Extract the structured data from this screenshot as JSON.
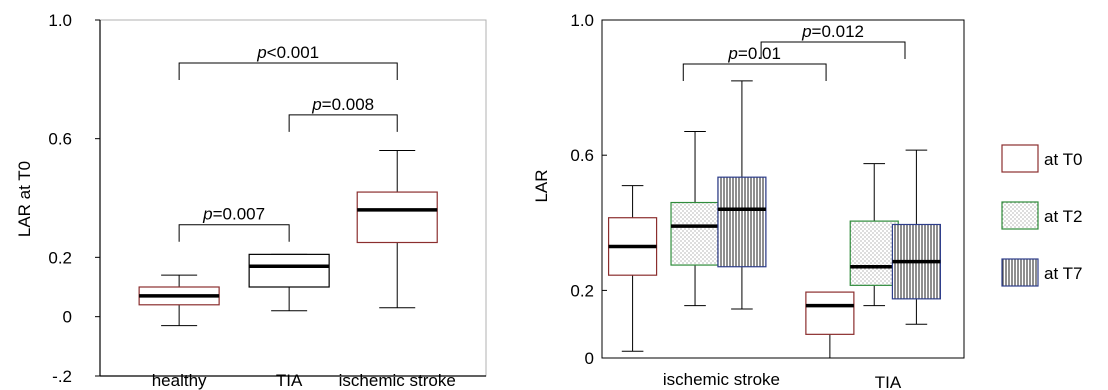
{
  "chart_data": [
    {
      "type": "box",
      "ylabel": "LAR at T0",
      "y_ticks": [
        "1.0",
        "0.6",
        "0.2",
        "0",
        "-.2"
      ],
      "y_tick_values": [
        1.0,
        0.6,
        0.2,
        0.0,
        -0.2
      ],
      "ylim": [
        -0.2,
        1.0
      ],
      "categories": [
        "healthy",
        "TIA",
        "ischemic stroke"
      ],
      "boxes": [
        {
          "category": "healthy",
          "min": -0.03,
          "q1": 0.04,
          "median": 0.07,
          "q3": 0.1,
          "max": 0.14,
          "border": "#8b2e2e"
        },
        {
          "category": "TIA",
          "min": 0.02,
          "q1": 0.1,
          "median": 0.17,
          "q3": 0.21,
          "max": 0.21,
          "border": "#000000"
        },
        {
          "category": "ischemic stroke",
          "min": 0.03,
          "q1": 0.25,
          "median": 0.36,
          "q3": 0.42,
          "max": 0.56,
          "border": "#8b2e2e"
        }
      ],
      "comparisons": [
        {
          "from": "healthy",
          "to": "ischemic stroke",
          "at": 0.855,
          "label_p": "p",
          "label_rest": "<0.001"
        },
        {
          "from": "TIA",
          "to": "ischemic stroke",
          "at": 0.68,
          "label_p": "p",
          "label_rest": "=0.008"
        },
        {
          "from": "healthy",
          "to": "TIA",
          "at": 0.31,
          "label_p": "p",
          "label_rest": "=0.007"
        }
      ]
    },
    {
      "type": "box",
      "ylabel": "LAR",
      "y_ticks": [
        "1.0",
        "0.6",
        "0.2",
        "0"
      ],
      "y_tick_values": [
        1.0,
        0.6,
        0.2,
        0.0
      ],
      "ylim": [
        0,
        1.0
      ],
      "categories": [
        "ischemic stroke",
        "TIA"
      ],
      "series": [
        "at T0",
        "at T2",
        "at T7"
      ],
      "boxes": [
        {
          "category": "ischemic stroke",
          "series": "at T0",
          "min": 0.02,
          "q1": 0.245,
          "median": 0.33,
          "q3": 0.415,
          "max": 0.51,
          "border": "#8b2e2e"
        },
        {
          "category": "ischemic stroke",
          "series": "at T2",
          "min": 0.155,
          "q1": 0.275,
          "median": 0.39,
          "q3": 0.46,
          "max": 0.67,
          "border": "#2e8b3a"
        },
        {
          "category": "ischemic stroke",
          "series": "at T7",
          "min": 0.145,
          "q1": 0.27,
          "median": 0.44,
          "q3": 0.535,
          "max": 0.82,
          "border": "#2e3e8b"
        },
        {
          "category": "TIA",
          "series": "at T0",
          "min": 0.0,
          "q1": 0.07,
          "median": 0.155,
          "q3": 0.195,
          "max": 0.195,
          "border": "#8b2e2e"
        },
        {
          "category": "TIA",
          "series": "at T2",
          "min": 0.155,
          "q1": 0.215,
          "median": 0.27,
          "q3": 0.405,
          "max": 0.575,
          "border": "#2e8b3a"
        },
        {
          "category": "TIA",
          "series": "at T7",
          "min": 0.1,
          "q1": 0.175,
          "median": 0.285,
          "q3": 0.395,
          "max": 0.615,
          "border": "#2e3e8b"
        }
      ],
      "comparisons": [
        {
          "from_x": 0.2245,
          "to_x": 0.619,
          "at": 0.87,
          "label_p": "p",
          "label_rest": "=0.01"
        },
        {
          "from_x": 0.4395,
          "to_x": 0.837,
          "at": 0.935,
          "label_p": "p",
          "label_rest": "=0.012"
        }
      ]
    }
  ],
  "legend": {
    "placement": "right",
    "items": [
      {
        "label": "at T0",
        "fill": "white"
      },
      {
        "label": "at T2",
        "fill": "dots"
      },
      {
        "label": "at T7",
        "fill": "vstripes"
      }
    ]
  }
}
